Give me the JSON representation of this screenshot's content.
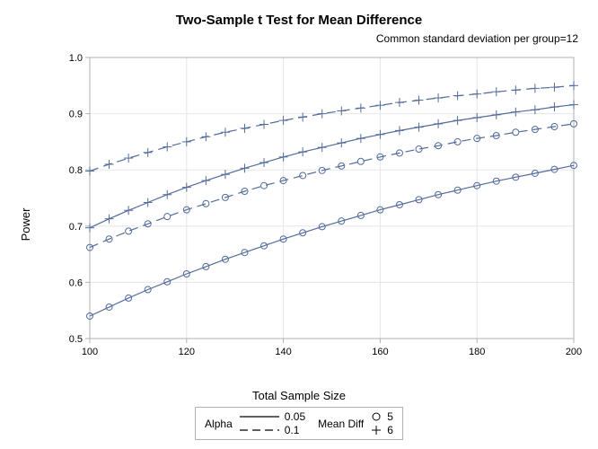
{
  "title": "Two-Sample t Test for Mean Difference",
  "subtitle": "Common standard deviation per group=12",
  "xlabel": "Total Sample Size",
  "ylabel": "Power",
  "chart": {
    "type": "line",
    "xlim": [
      100,
      200
    ],
    "ylim": [
      0.5,
      1.0
    ],
    "xtick_step": 20,
    "ytick_step": 0.1,
    "xticks": [
      100,
      120,
      140,
      160,
      180,
      200
    ],
    "yticks": [
      0.5,
      0.6,
      0.7,
      0.8,
      0.9,
      1.0
    ],
    "background_color": "#ffffff",
    "border_color": "#b0b0b0",
    "grid_color": "#e5e5e5",
    "tick_fontsize": 11,
    "label_fontsize": 13,
    "title_fontsize": 15,
    "line_color": "#536b9a",
    "line_width": 1.2,
    "marker_size": 5
  },
  "series": [
    {
      "alpha": 0.05,
      "mean_diff": 5,
      "dash": "solid",
      "marker": "circle",
      "x": [
        100,
        104,
        108,
        112,
        116,
        120,
        124,
        128,
        132,
        136,
        140,
        144,
        148,
        152,
        156,
        160,
        164,
        168,
        172,
        176,
        180,
        184,
        188,
        192,
        196,
        200
      ],
      "y": [
        0.54,
        0.556,
        0.572,
        0.587,
        0.601,
        0.615,
        0.628,
        0.641,
        0.653,
        0.665,
        0.677,
        0.688,
        0.699,
        0.709,
        0.719,
        0.729,
        0.738,
        0.747,
        0.756,
        0.764,
        0.772,
        0.78,
        0.787,
        0.794,
        0.801,
        0.808
      ]
    },
    {
      "alpha": 0.1,
      "mean_diff": 5,
      "dash": "dashed",
      "marker": "circle",
      "x": [
        100,
        104,
        108,
        112,
        116,
        120,
        124,
        128,
        132,
        136,
        140,
        144,
        148,
        152,
        156,
        160,
        164,
        168,
        172,
        176,
        180,
        184,
        188,
        192,
        196,
        200
      ],
      "y": [
        0.662,
        0.677,
        0.691,
        0.704,
        0.717,
        0.729,
        0.74,
        0.751,
        0.762,
        0.772,
        0.781,
        0.79,
        0.799,
        0.807,
        0.815,
        0.823,
        0.83,
        0.837,
        0.843,
        0.85,
        0.856,
        0.861,
        0.867,
        0.872,
        0.877,
        0.882
      ]
    },
    {
      "alpha": 0.05,
      "mean_diff": 6,
      "dash": "solid",
      "marker": "plus",
      "x": [
        100,
        104,
        108,
        112,
        116,
        120,
        124,
        128,
        132,
        136,
        140,
        144,
        148,
        152,
        156,
        160,
        164,
        168,
        172,
        176,
        180,
        184,
        188,
        192,
        196,
        200
      ],
      "y": [
        0.697,
        0.713,
        0.728,
        0.742,
        0.756,
        0.769,
        0.781,
        0.792,
        0.803,
        0.813,
        0.823,
        0.832,
        0.84,
        0.848,
        0.856,
        0.863,
        0.87,
        0.876,
        0.882,
        0.888,
        0.893,
        0.898,
        0.903,
        0.907,
        0.912,
        0.916
      ]
    },
    {
      "alpha": 0.1,
      "mean_diff": 6,
      "dash": "dashed",
      "marker": "plus",
      "x": [
        100,
        104,
        108,
        112,
        116,
        120,
        124,
        128,
        132,
        136,
        140,
        144,
        148,
        152,
        156,
        160,
        164,
        168,
        172,
        176,
        180,
        184,
        188,
        192,
        196,
        200
      ],
      "y": [
        0.798,
        0.81,
        0.821,
        0.831,
        0.841,
        0.85,
        0.859,
        0.867,
        0.874,
        0.881,
        0.888,
        0.894,
        0.9,
        0.905,
        0.91,
        0.915,
        0.92,
        0.924,
        0.928,
        0.932,
        0.935,
        0.939,
        0.942,
        0.945,
        0.947,
        0.95
      ]
    }
  ],
  "legend": {
    "alpha_label": "Alpha",
    "meandiff_label": "Mean Diff",
    "alpha_items": [
      {
        "value": "0.05",
        "dash": "solid"
      },
      {
        "value": "0.1",
        "dash": "dashed"
      }
    ],
    "meandiff_items": [
      {
        "value": "5",
        "marker": "circle"
      },
      {
        "value": "6",
        "marker": "plus"
      }
    ]
  }
}
